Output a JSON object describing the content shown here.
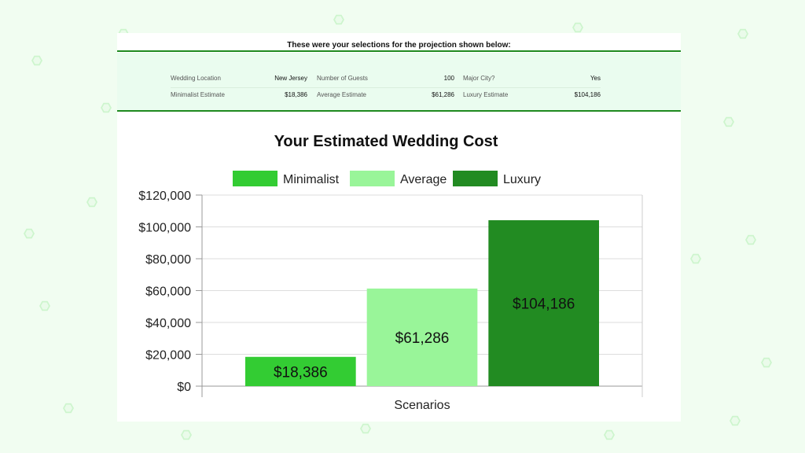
{
  "selections": {
    "title": "These were your selections for the projection shown below:",
    "rows": [
      [
        {
          "label": "Wedding Location",
          "value": "New Jersey"
        },
        {
          "label": "Number of Guests",
          "value": "100"
        },
        {
          "label": "Major City?",
          "value": "Yes"
        }
      ],
      [
        {
          "label": "Minimalist Estimate",
          "value": "$18,386"
        },
        {
          "label": "Average Estimate",
          "value": "$61,286"
        },
        {
          "label": "Luxury Estimate",
          "value": "$104,186"
        }
      ]
    ]
  },
  "chart_data": {
    "type": "bar",
    "title": "Your Estimated Wedding Cost",
    "xlabel": "Scenarios",
    "ylabel": "",
    "ylim": [
      0,
      120000
    ],
    "yticks": [
      0,
      20000,
      40000,
      60000,
      80000,
      100000,
      120000
    ],
    "ytick_labels": [
      "$0",
      "$20,000",
      "$40,000",
      "$60,000",
      "$80,000",
      "$100,000",
      "$120,000"
    ],
    "grid": true,
    "legend_position": "top",
    "series": [
      {
        "name": "Minimalist",
        "value": 18386,
        "label": "$18,386",
        "color": "#33cc33"
      },
      {
        "name": "Average",
        "value": 61286,
        "label": "$61,286",
        "color": "#99f599"
      },
      {
        "name": "Luxury",
        "value": 104186,
        "label": "$104,186",
        "color": "#228b22"
      }
    ]
  },
  "colors": {
    "accent_line": "#1f8a1f",
    "panel_background": "#eafcef",
    "page_background": "#f1fdf1"
  }
}
